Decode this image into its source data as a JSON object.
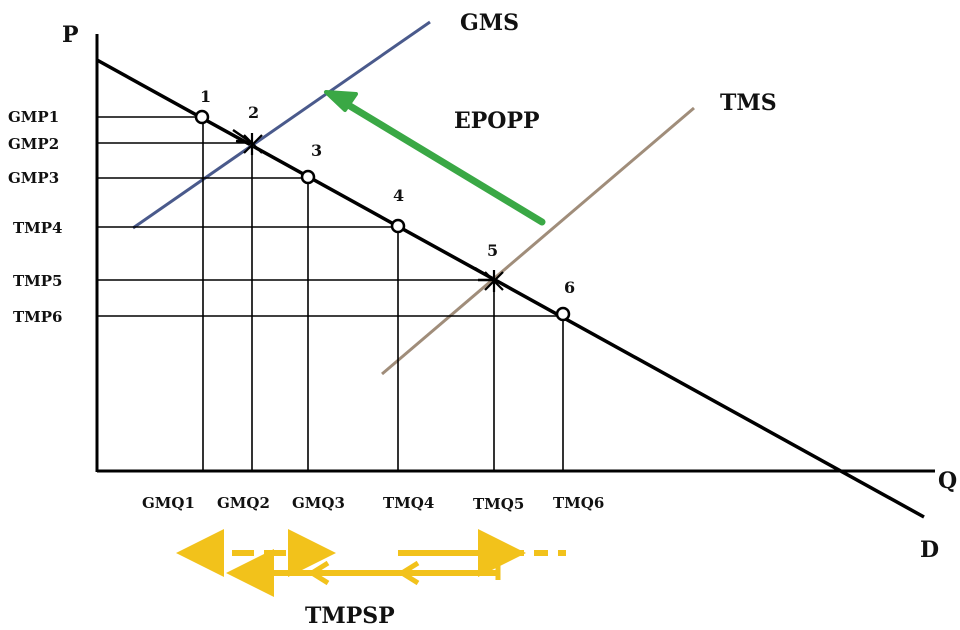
{
  "axes": {
    "y_label": "P",
    "x_label": "Q"
  },
  "curves": {
    "demand_label": "D",
    "gms_label": "GMS",
    "tms_label": "TMS"
  },
  "arrow_label": "EPOPP",
  "bottom_label": "TMPSP",
  "price_ticks": [
    "GMP1",
    "GMP2",
    "GMP3",
    "TMP4",
    "TMP5",
    "TMP6"
  ],
  "quantity_ticks": [
    "GMQ1",
    "GMQ2",
    "GMQ3",
    "TMQ4",
    "TMQ5",
    "TMQ6"
  ],
  "points": [
    "1",
    "2",
    "3",
    "4",
    "5",
    "6"
  ],
  "colors": {
    "axis": "#000000",
    "demand": "#000000",
    "gms": "#4a5a8c",
    "tms": "#a08d7a",
    "epopp_arrow": "#3aa845",
    "tmpsp_arrows": "#f2c21b"
  }
}
